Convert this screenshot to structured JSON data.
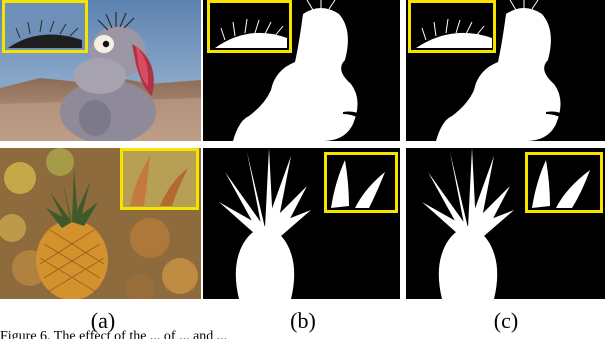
{
  "figure": {
    "captions": [
      "(a)",
      "(b)",
      "(c)"
    ],
    "bottom_text": "Figure 6. The effect of the ... of ... and ..."
  },
  "colors": {
    "inset_border": "#f5e400",
    "matte_fg": "#ffffff",
    "matte_bg": "#000000"
  }
}
